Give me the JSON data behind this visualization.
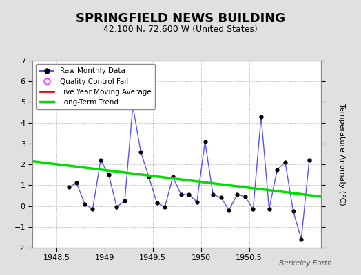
{
  "title": "SPRINGFIELD NEWS BUILDING",
  "subtitle": "42.100 N, 72.600 W (United States)",
  "ylabel": "Temperature Anomaly (°C)",
  "watermark": "Berkeley Earth",
  "xlim": [
    1948.25,
    1951.25
  ],
  "ylim": [
    -2,
    7
  ],
  "yticks": [
    -2,
    -1,
    0,
    1,
    2,
    3,
    4,
    5,
    6,
    7
  ],
  "xticks": [
    1948.5,
    1949.0,
    1949.5,
    1950.0,
    1950.5
  ],
  "background_color": "#e0e0e0",
  "plot_bg_color": "#ffffff",
  "raw_x": [
    1948.625,
    1948.708,
    1948.792,
    1948.875,
    1948.958,
    1949.042,
    1949.125,
    1949.208,
    1949.292,
    1949.375,
    1949.458,
    1949.542,
    1949.625,
    1949.708,
    1949.792,
    1949.875,
    1949.958,
    1950.042,
    1950.125,
    1950.208,
    1950.292,
    1950.375,
    1950.458,
    1950.542,
    1950.625,
    1950.708,
    1950.792,
    1950.875,
    1950.958,
    1951.042,
    1951.125
  ],
  "raw_y": [
    0.9,
    1.1,
    0.1,
    -0.15,
    2.2,
    1.5,
    -0.05,
    0.25,
    4.8,
    2.6,
    1.4,
    0.15,
    -0.05,
    1.4,
    0.55,
    0.55,
    0.2,
    3.1,
    0.55,
    0.4,
    -0.2,
    0.55,
    0.45,
    -0.15,
    4.3,
    -0.15,
    1.75,
    2.1,
    -0.25,
    -1.6,
    2.2
  ],
  "trend_x": [
    1948.25,
    1951.25
  ],
  "trend_y": [
    2.15,
    0.45
  ],
  "line_color": "#5555ff",
  "marker_color": "#000000",
  "trend_color": "#00dd00",
  "mavg_color": "#ff0000",
  "qc_color": "#ff44ff",
  "title_fontsize": 13,
  "subtitle_fontsize": 9,
  "tick_labelsize": 8,
  "ylabel_fontsize": 8,
  "legend_fontsize": 7.5,
  "watermark_fontsize": 7.5
}
